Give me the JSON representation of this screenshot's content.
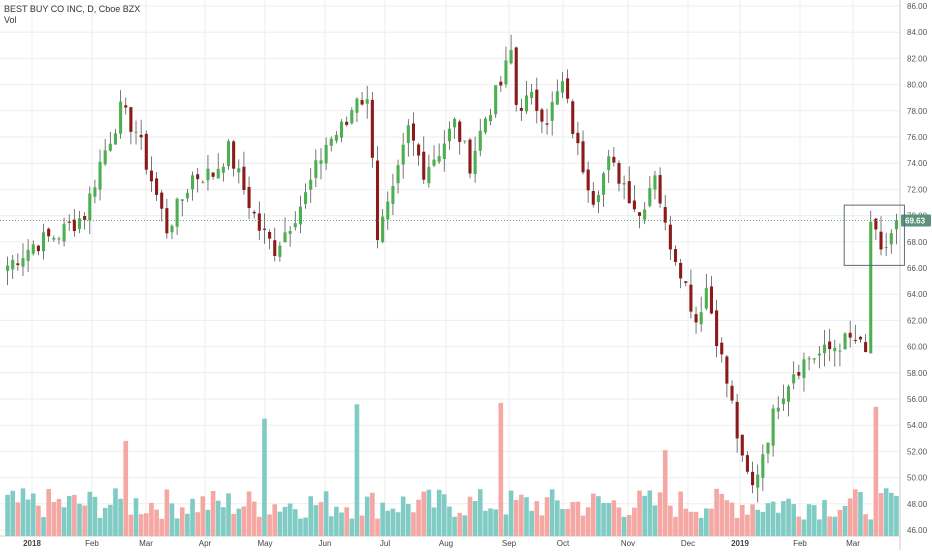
{
  "legend": {
    "symbol_line": "BEST BUY CO INC, D, Cboe BZX",
    "volume_label": "Vol"
  },
  "colors": {
    "up": "#26a69a",
    "down": "#ef5350",
    "up_body": "#4caf50",
    "down_body": "#8b1a1a",
    "vol_up": "#80cbc4",
    "vol_down": "#f4a7a3",
    "price_line": "#5b9279",
    "grid": "#eeeeee"
  },
  "chart_data": {
    "type": "candlestick",
    "title": "BEST BUY CO INC, D, Cboe BZX",
    "ylim": [
      46,
      86
    ],
    "y_ticks": [
      "86.00",
      "84.00",
      "82.00",
      "80.00",
      "78.00",
      "76.00",
      "74.00",
      "72.00",
      "70.00",
      "68.00",
      "66.00",
      "64.00",
      "62.00",
      "60.00",
      "58.00",
      "56.00",
      "54.00",
      "52.00",
      "50.00",
      "48.00",
      "46.00"
    ],
    "x_ticks": [
      "2018",
      "Feb",
      "Mar",
      "Apr",
      "May",
      "Jun",
      "Jul",
      "Aug",
      "Sep",
      "Oct",
      "Nov",
      "Dec",
      "2019",
      "Feb",
      "Mar"
    ],
    "last_price_label": "69.63",
    "last_price": 69.63,
    "close_path": [
      [
        0,
        66.2
      ],
      [
        5,
        67.8
      ],
      [
        10,
        68.6
      ],
      [
        15,
        70.1
      ],
      [
        18,
        74.0
      ],
      [
        22,
        78.0
      ],
      [
        25,
        76.5
      ],
      [
        29,
        71.5
      ],
      [
        31,
        69.0
      ],
      [
        33,
        70.5
      ],
      [
        36,
        73.0
      ],
      [
        40,
        73.2
      ],
      [
        43,
        75.0
      ],
      [
        46,
        72.0
      ],
      [
        49,
        69.0
      ],
      [
        52,
        67.5
      ],
      [
        54,
        68.8
      ],
      [
        58,
        71.5
      ],
      [
        62,
        75.5
      ],
      [
        66,
        77.0
      ],
      [
        68,
        79.3
      ],
      [
        70,
        78.5
      ],
      [
        71,
        75.0
      ],
      [
        72,
        68.5
      ],
      [
        75,
        71.5
      ],
      [
        78,
        76.5
      ],
      [
        81,
        73.5
      ],
      [
        84,
        75.0
      ],
      [
        87,
        77.0
      ],
      [
        90,
        74.0
      ],
      [
        93,
        77.5
      ],
      [
        96,
        80.0
      ],
      [
        98,
        82.5
      ],
      [
        99,
        78.5
      ],
      [
        102,
        78.8
      ],
      [
        105,
        77.5
      ],
      [
        108,
        80.0
      ],
      [
        111,
        75.0
      ],
      [
        114,
        71.5
      ],
      [
        117,
        74.0
      ],
      [
        120,
        72.5
      ],
      [
        123,
        70.0
      ],
      [
        126,
        73.5
      ],
      [
        128,
        69.0
      ],
      [
        131,
        66.0
      ],
      [
        134,
        62.0
      ],
      [
        136,
        64.5
      ],
      [
        139,
        59.0
      ],
      [
        141,
        55.5
      ],
      [
        143,
        51.0
      ],
      [
        145,
        49.2
      ],
      [
        147,
        52.0
      ],
      [
        150,
        56.0
      ],
      [
        153,
        58.2
      ],
      [
        156,
        59.2
      ],
      [
        159,
        59.5
      ],
      [
        162,
        60.3
      ],
      [
        165,
        60.5
      ],
      [
        167,
        59.3
      ],
      [
        168,
        69.6
      ],
      [
        170,
        66.8
      ],
      [
        173,
        69.6
      ]
    ],
    "volume_spikes": [
      {
        "bar": 23,
        "value": 52.8
      },
      {
        "bar": 50,
        "value": 54.5
      },
      {
        "bar": 68,
        "value": 55.6
      },
      {
        "bar": 96,
        "value": 55.7
      },
      {
        "bar": 128,
        "value": 52.1
      },
      {
        "bar": 169,
        "value": 55.4
      }
    ]
  }
}
